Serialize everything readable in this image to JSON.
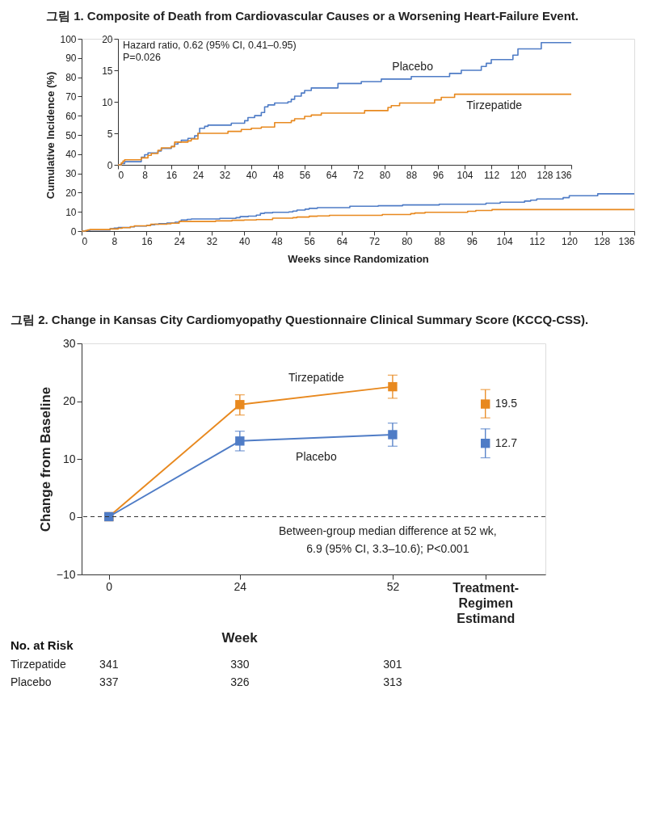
{
  "chart_data": [
    {
      "type": "step",
      "title": "그림 1. Composite of Death from Cardiovascular Causes or a Worsening Heart-Failure Event.",
      "xlabel": "Weeks since Randomization",
      "ylabel": "Cumulative Incidence (%)",
      "xlim": [
        0,
        136
      ],
      "xticks": [
        0,
        8,
        16,
        24,
        32,
        40,
        48,
        56,
        64,
        72,
        80,
        88,
        96,
        104,
        112,
        120,
        128,
        136
      ],
      "ylim": [
        0,
        100
      ],
      "yticks": [
        0,
        10,
        20,
        30,
        40,
        50,
        60,
        70,
        80,
        90,
        100
      ],
      "grid": false,
      "series": [
        {
          "color": "#4f7cc6",
          "x": [
            0,
            1,
            2,
            7,
            8,
            9,
            12,
            13,
            16,
            17,
            18,
            19,
            21,
            23,
            24,
            24.5,
            26,
            27,
            34,
            38,
            39,
            41,
            43,
            44,
            45,
            47,
            51,
            52,
            53,
            55,
            56,
            58,
            66,
            73,
            79,
            88,
            99.5,
            103,
            109,
            110.5,
            112,
            118.5,
            120,
            127,
            136
          ],
          "values": [
            0,
            0.2,
            0.5,
            1.2,
            1.6,
            1.9,
            2.2,
            2.6,
            2.9,
            3.3,
            3.6,
            3.9,
            4.2,
            4.6,
            5.0,
            5.8,
            6.1,
            6.3,
            6.6,
            7.0,
            7.5,
            7.8,
            8.3,
            9.2,
            9.5,
            9.8,
            10.0,
            10.4,
            10.9,
            11.4,
            11.8,
            12.2,
            12.9,
            13.2,
            13.6,
            14.0,
            14.5,
            15.0,
            15.6,
            16.1,
            16.7,
            17.4,
            18.4,
            19.4,
            19.4
          ]
        },
        {
          "color": "#e8891f",
          "x": [
            0,
            1,
            1.5,
            2,
            7,
            9,
            10,
            12,
            13,
            16,
            17,
            21,
            22,
            24,
            33,
            37,
            40,
            43,
            47,
            52,
            53,
            56,
            58,
            61,
            74,
            81,
            82,
            84.5,
            95,
            97,
            101,
            136
          ],
          "values": [
            0,
            0.3,
            0.6,
            0.8,
            1.1,
            1.5,
            1.8,
            2.3,
            2.7,
            2.9,
            3.6,
            3.8,
            4.1,
            5.0,
            5.3,
            5.6,
            5.8,
            6.0,
            6.7,
            7.0,
            7.3,
            7.7,
            7.9,
            8.2,
            8.6,
            9.1,
            9.4,
            9.8,
            10.3,
            10.7,
            11.2,
            11.2
          ]
        }
      ]
    },
    {
      "type": "step",
      "annotations": [
        "Hazard ratio, 0.62 (95% CI, 0.41–0.95)",
        "P=0.026"
      ],
      "xlim": [
        0,
        136
      ],
      "xticks": [
        0,
        8,
        16,
        24,
        32,
        40,
        48,
        56,
        64,
        72,
        80,
        88,
        96,
        104,
        112,
        120,
        128,
        136
      ],
      "ylim": [
        0,
        20
      ],
      "yticks": [
        0,
        5,
        10,
        15,
        20
      ],
      "grid": false,
      "series": [
        {
          "name": "Placebo",
          "color": "#4f7cc6",
          "x": [
            0,
            1,
            2,
            7,
            8,
            9,
            12,
            13,
            16,
            17,
            18,
            19,
            21,
            23,
            24,
            24.5,
            26,
            27,
            34,
            38,
            39,
            41,
            43,
            44,
            45,
            47,
            51,
            52,
            53,
            55,
            56,
            58,
            66,
            73,
            79,
            88,
            99.5,
            103,
            109,
            110.5,
            112,
            118.5,
            120,
            127,
            136
          ],
          "values": [
            0,
            0.2,
            0.5,
            1.2,
            1.6,
            1.9,
            2.2,
            2.6,
            2.9,
            3.3,
            3.6,
            3.9,
            4.2,
            4.6,
            5.0,
            5.8,
            6.1,
            6.3,
            6.6,
            7.0,
            7.5,
            7.8,
            8.3,
            9.2,
            9.5,
            9.8,
            10.0,
            10.4,
            10.9,
            11.4,
            11.8,
            12.2,
            12.9,
            13.2,
            13.6,
            14.0,
            14.5,
            15.0,
            15.6,
            16.1,
            16.7,
            17.4,
            18.4,
            19.4,
            19.4
          ]
        },
        {
          "name": "Tirzepatide",
          "color": "#e8891f",
          "x": [
            0,
            1,
            1.5,
            2,
            7,
            9,
            10,
            12,
            13,
            16,
            17,
            21,
            22,
            24,
            33,
            37,
            40,
            43,
            47,
            52,
            53,
            56,
            58,
            61,
            74,
            81,
            82,
            84.5,
            95,
            97,
            101,
            136
          ],
          "values": [
            0,
            0.3,
            0.6,
            0.8,
            1.1,
            1.5,
            1.8,
            2.3,
            2.7,
            2.9,
            3.6,
            3.8,
            4.1,
            5.0,
            5.3,
            5.6,
            5.8,
            6.0,
            6.7,
            7.0,
            7.3,
            7.7,
            7.9,
            8.2,
            8.6,
            9.1,
            9.4,
            9.8,
            10.3,
            10.7,
            11.2,
            11.2
          ]
        }
      ]
    },
    {
      "type": "line",
      "title": "그림 2. Change in Kansas City Cardiomyopathy Questionnaire Clinical Summary Score (KCCQ-CSS).",
      "xlabel": "Week",
      "ylabel": "Change from Baseline",
      "xlim": [
        -5,
        80
      ],
      "xticks": [
        0,
        24,
        52,
        {
          "value": 69,
          "label": "Treatment-Regimen Estimand"
        }
      ],
      "ylim": [
        -10,
        30
      ],
      "yticks": [
        -10,
        0,
        10,
        20,
        30
      ],
      "grid": false,
      "marker": "square",
      "ref_lines": [
        {
          "axis": "y",
          "value": 0,
          "line_style": "dashed",
          "color": "#333333"
        }
      ],
      "annotations": [
        "Between-group median difference at 52 wk, 6.9 (95% CI, 3.3–10.6); P<0.001",
        "No. at Risk",
        "Tirzepatide",
        "341",
        "330",
        "301",
        "Placebo",
        "337",
        "326",
        "313"
      ],
      "series": [
        {
          "name": "Tirzepatide",
          "color": "#e8891f",
          "x": [
            0,
            24,
            52
          ],
          "values": [
            0,
            19.4,
            22.5
          ],
          "errors": [
            null,
            [
              17.6,
              21.1
            ],
            [
              20.5,
              24.5
            ]
          ]
        },
        {
          "name": "Placebo",
          "color": "#4f7cc6",
          "x": [
            0,
            24,
            52
          ],
          "values": [
            0,
            13.1,
            14.2
          ],
          "errors": [
            null,
            [
              11.4,
              14.8
            ],
            [
              12.2,
              16.2
            ]
          ]
        },
        {
          "type": "scatter",
          "color": "#e8891f",
          "x": [
            69
          ],
          "values": [
            19.5
          ],
          "errors": [
            [
              17.1,
              22.0
            ]
          ],
          "value_labels": [
            "19.5"
          ]
        },
        {
          "type": "scatter",
          "color": "#4f7cc6",
          "x": [
            69
          ],
          "values": [
            12.7
          ],
          "errors": [
            [
              10.2,
              15.2
            ]
          ],
          "value_labels": [
            "12.7"
          ]
        }
      ]
    }
  ]
}
